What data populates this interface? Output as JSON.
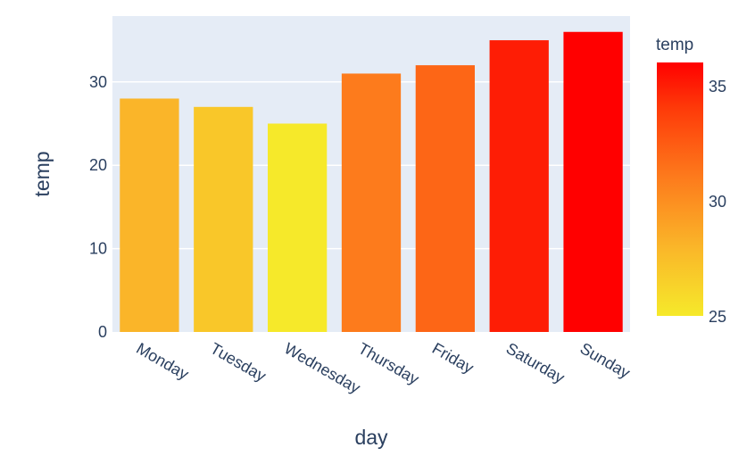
{
  "chart_data": {
    "type": "bar",
    "categories": [
      "Monday",
      "Tuesday",
      "Wednesday",
      "Thursday",
      "Friday",
      "Saturday",
      "Sunday"
    ],
    "values": [
      28,
      27,
      25,
      31,
      32,
      35,
      36
    ],
    "xlabel": "day",
    "ylabel": "temp",
    "ylim": [
      0,
      37.9
    ],
    "yticks": [
      0,
      10,
      20,
      30
    ],
    "grid": true,
    "colorbar": {
      "title": "temp",
      "range": [
        25,
        36
      ],
      "ticks": [
        25,
        30,
        35
      ],
      "colorscale": [
        [
          0,
          "#f6e92a"
        ],
        [
          0.27,
          "#fab629"
        ],
        [
          0.55,
          "#fd7a1c"
        ],
        [
          0.82,
          "#fe3a09"
        ],
        [
          1,
          "#ff0000"
        ]
      ]
    },
    "colors": {
      "plot_bg": "#e5ecf6",
      "grid": "#ffffff",
      "text": "#2a3f5f"
    }
  }
}
